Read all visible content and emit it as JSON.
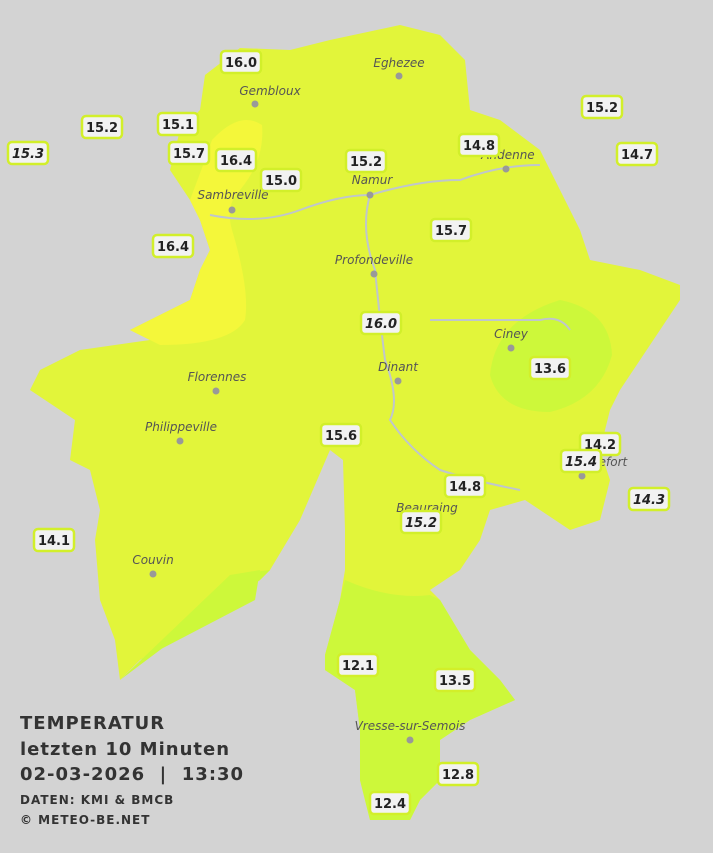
{
  "legend": {
    "title": "TEMPERATUR",
    "period": "letzten 10 Minuten",
    "datetime": "02-03-2026  |  13:30",
    "source": "DATEN: KMI & BMCB",
    "copyright": "© METEO-BE.NET"
  },
  "cities": [
    "Eghezee",
    "Gembloux",
    "Andenne",
    "Namur",
    "Sambreville",
    "Profondeville",
    "Ciney",
    "Dinant",
    "Florennes",
    "Philippeville",
    "Rochefort",
    "Beauraing",
    "Couvin",
    "Vresse-sur-Semois"
  ],
  "stations": [
    {
      "value": "16.0",
      "italic": false
    },
    {
      "value": "15.2",
      "italic": false
    },
    {
      "value": "15.1",
      "italic": false
    },
    {
      "value": "15.3",
      "italic": true
    },
    {
      "value": "15.7",
      "italic": false
    },
    {
      "value": "16.4",
      "italic": false
    },
    {
      "value": "15.0",
      "italic": false
    },
    {
      "value": "15.2",
      "italic": false
    },
    {
      "value": "14.8",
      "italic": false
    },
    {
      "value": "15.2",
      "italic": false
    },
    {
      "value": "14.7",
      "italic": false
    },
    {
      "value": "16.4",
      "italic": false
    },
    {
      "value": "15.7",
      "italic": false
    },
    {
      "value": "16.0",
      "italic": true
    },
    {
      "value": "13.6",
      "italic": false
    },
    {
      "value": "15.6",
      "italic": false
    },
    {
      "value": "14.2",
      "italic": false
    },
    {
      "value": "15.4",
      "italic": true
    },
    {
      "value": "14.8",
      "italic": false
    },
    {
      "value": "15.2",
      "italic": true
    },
    {
      "value": "14.3",
      "italic": true
    },
    {
      "value": "14.1",
      "italic": false
    },
    {
      "value": "12.1",
      "italic": false
    },
    {
      "value": "13.5",
      "italic": false
    },
    {
      "value": "12.8",
      "italic": false
    },
    {
      "value": "12.4",
      "italic": false
    }
  ]
}
